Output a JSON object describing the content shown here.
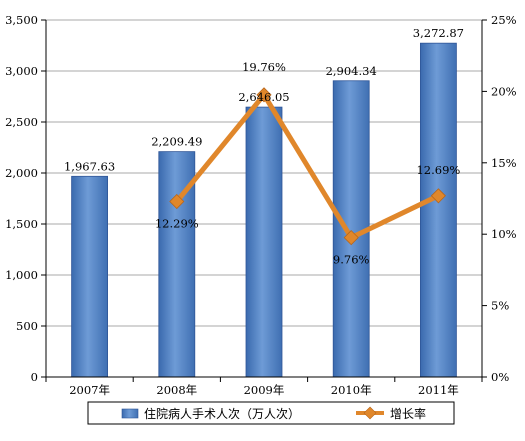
{
  "chart_data": {
    "type": "bar+line",
    "categories": [
      "2007年",
      "2008年",
      "2009年",
      "2010年",
      "2011年"
    ],
    "series": [
      {
        "name": "住院病人手术人次（万人次）",
        "type": "bar",
        "axis": "left",
        "values": [
          1967.63,
          2209.49,
          2646.05,
          2904.34,
          3272.87
        ],
        "labels": [
          "1,967.63",
          "2,209.49",
          "2,646.05",
          "2,904.34",
          "3,272.87"
        ],
        "color": "#4F81BD"
      },
      {
        "name": "增长率",
        "type": "line",
        "axis": "right",
        "values": [
          null,
          12.29,
          19.76,
          9.76,
          12.69
        ],
        "labels": [
          "",
          "12.29%",
          "19.76%",
          "9.76%",
          "12.69%"
        ],
        "color": "#E0872B"
      }
    ],
    "y_left": {
      "ylim": [
        0,
        3500
      ],
      "ticks": [
        0,
        500,
        1000,
        1500,
        2000,
        2500,
        3000,
        3500
      ],
      "tick_labels": [
        "0",
        "500",
        "1,000",
        "1,500",
        "2,000",
        "2,500",
        "3,000",
        "3,500"
      ]
    },
    "y_right": {
      "ylim": [
        0,
        25
      ],
      "ticks": [
        0,
        5,
        10,
        15,
        20,
        25
      ],
      "tick_labels": [
        "0%",
        "5%",
        "10%",
        "15%",
        "20%",
        "25%"
      ]
    },
    "grid": true,
    "legend": "bottom"
  }
}
